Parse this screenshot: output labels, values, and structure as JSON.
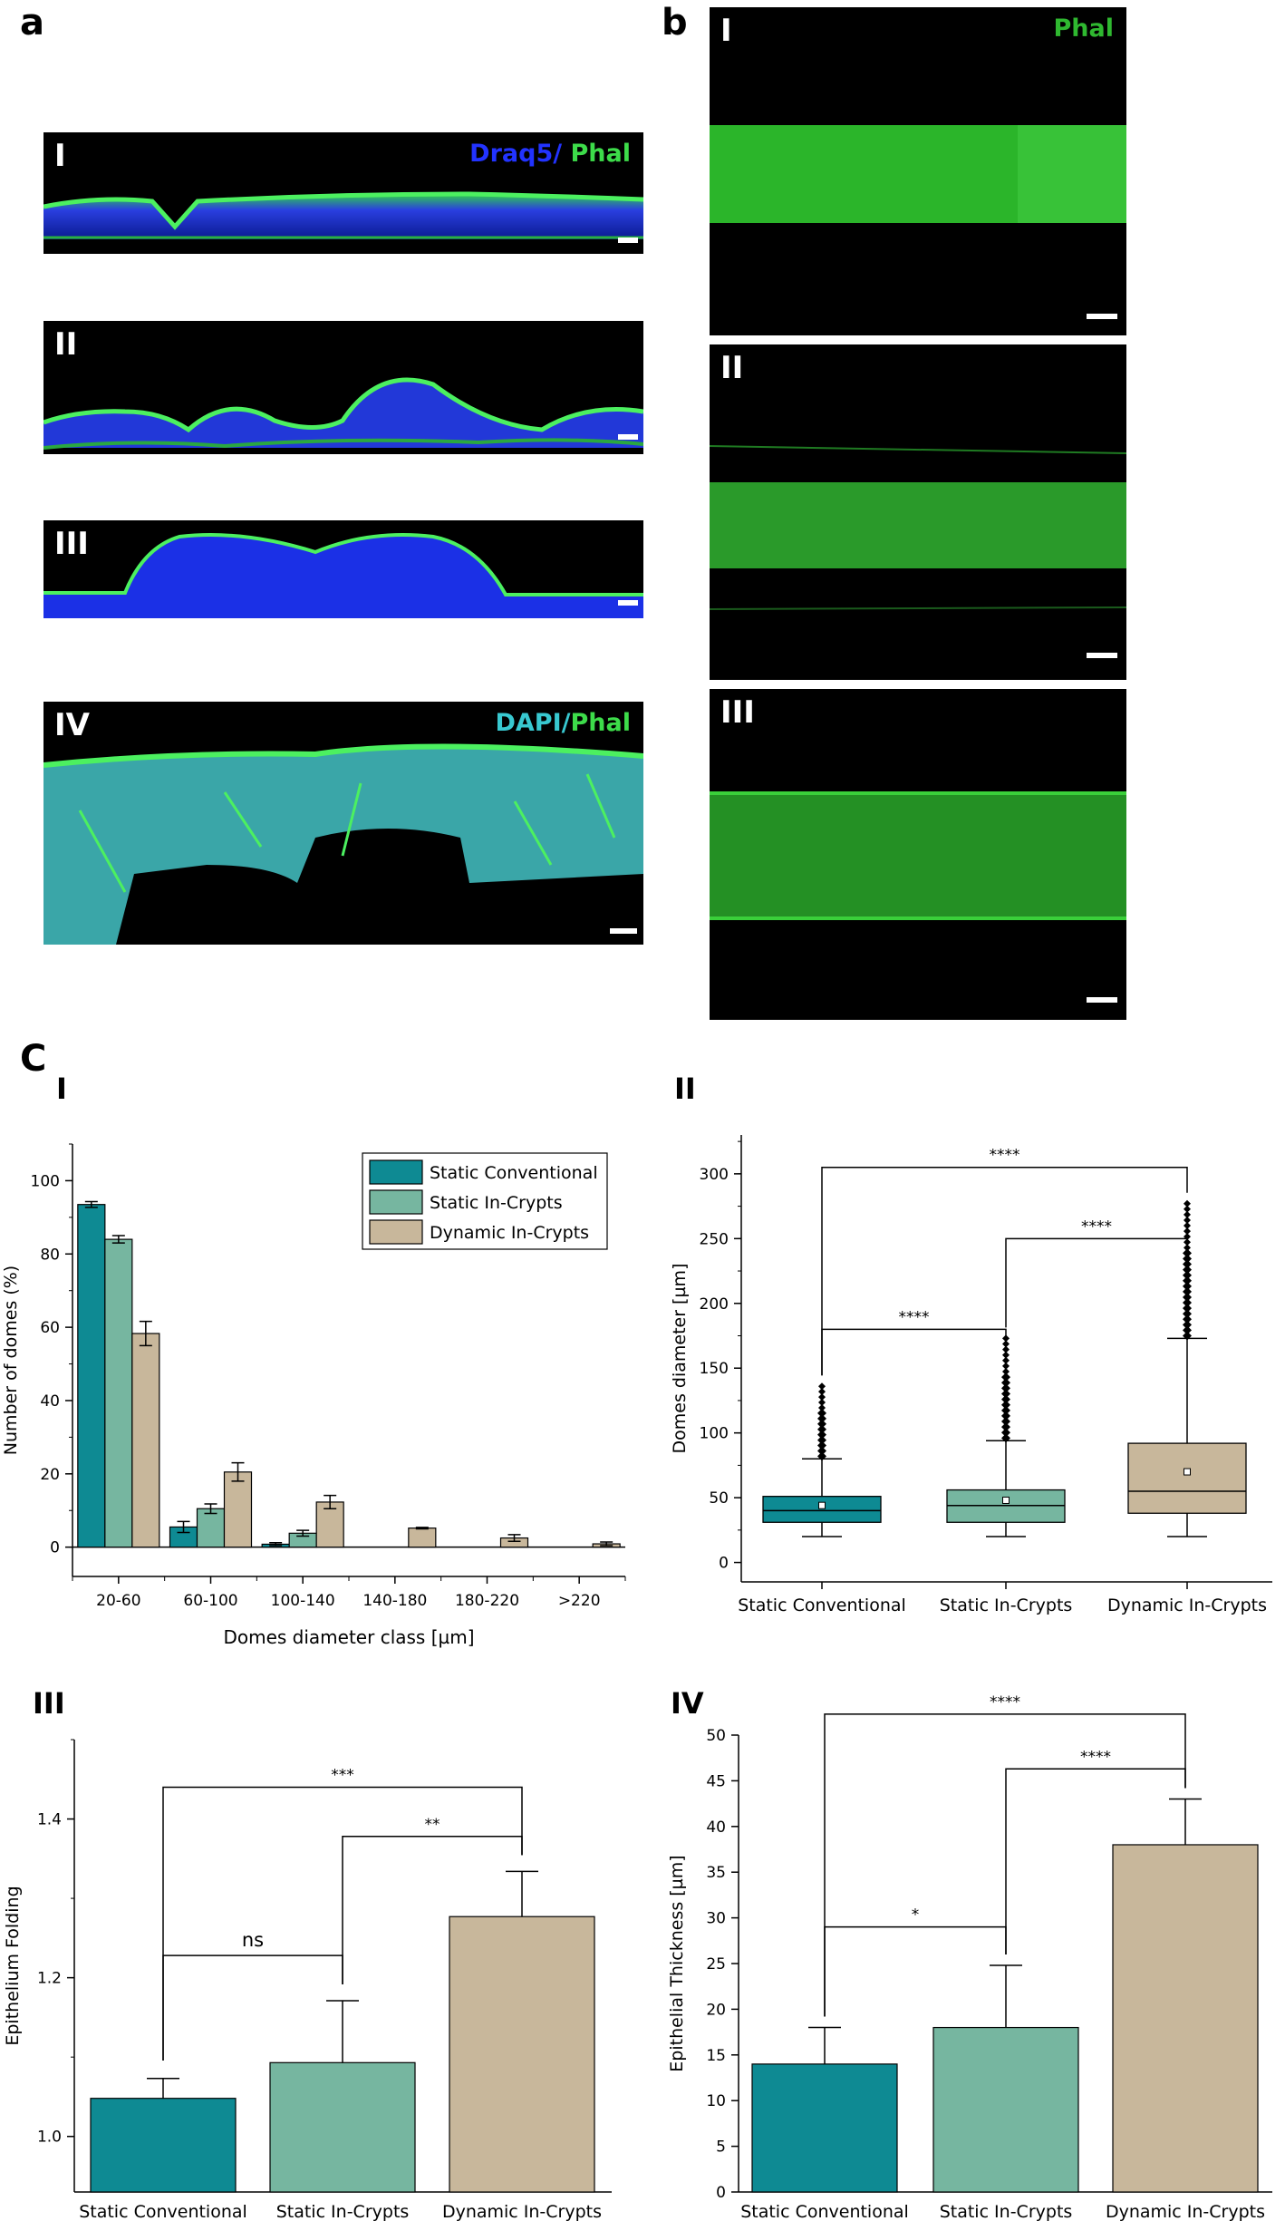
{
  "panels": {
    "a": "a",
    "b": "b",
    "c": "C"
  },
  "micrographs_a": [
    {
      "label": "I",
      "stain_a": "Draq5/",
      "stain_b": " Phal",
      "color_a": "#2233ff",
      "color_b": "#3ddc4a"
    },
    {
      "label": "II"
    },
    {
      "label": "III"
    },
    {
      "label": "IV",
      "stain_a": "DAPI/",
      "stain_b": "Phal",
      "color_a": "#38c8d0",
      "color_b": "#3ddc4a"
    }
  ],
  "micrographs_b": [
    {
      "label": "I",
      "stain": "Phal",
      "color": "#2fb830"
    },
    {
      "label": "II"
    },
    {
      "label": "III"
    }
  ],
  "colors": {
    "static_conventional": "#0e8a93",
    "static_in_crypts": "#76b6a0",
    "dynamic_in_crypts": "#c8b79b"
  },
  "chart_data": [
    {
      "id": "C-I",
      "panel_label": "I",
      "type": "bar",
      "categories": [
        "20-60",
        "60-100",
        "100-140",
        "140-180",
        "180-220",
        ">220"
      ],
      "series": [
        {
          "name": "Static Conventional",
          "values": [
            93.5,
            5.5,
            0.8,
            null,
            null,
            null
          ],
          "errors": [
            0.8,
            1.5,
            0.4,
            null,
            null,
            null
          ]
        },
        {
          "name": "Static In-Crypts",
          "values": [
            84,
            10.5,
            3.8,
            null,
            null,
            null
          ],
          "errors": [
            1,
            1.3,
            0.8,
            null,
            null,
            null
          ]
        },
        {
          "name": "Dynamic In-Crypts",
          "values": [
            58.3,
            20.5,
            12.3,
            5.2,
            2.5,
            0.9
          ],
          "errors": [
            3.3,
            2.5,
            1.8,
            0.2,
            0.9,
            0.5
          ]
        }
      ],
      "xlabel": "Domes diameter class [µm]",
      "ylabel": "Number of domes (%)",
      "ylim": [
        -8,
        110
      ],
      "yticks": [
        0,
        20,
        40,
        60,
        80,
        100
      ],
      "legend_position": "top-right"
    },
    {
      "id": "C-II",
      "panel_label": "II",
      "type": "box",
      "categories": [
        "Static Conventional",
        "Static In-Crypts",
        "Dynamic In-Crypts"
      ],
      "boxes": [
        {
          "name": "Static Conventional",
          "whisker_low": 20,
          "q1": 31,
          "median": 40,
          "q3": 51,
          "whisker_high": 80,
          "mean": 44,
          "outliers_range": [
            82,
            136
          ]
        },
        {
          "name": "Static In-Crypts",
          "whisker_low": 20,
          "q1": 31,
          "median": 44,
          "q3": 56,
          "whisker_high": 94,
          "mean": 48,
          "outliers_range": [
            96,
            173
          ]
        },
        {
          "name": "Dynamic In-Crypts",
          "whisker_low": 20,
          "q1": 38,
          "median": 55,
          "q3": 92,
          "whisker_high": 173,
          "mean": 70,
          "outliers_range": [
            175,
            277
          ]
        }
      ],
      "ylabel": "Domes diameter [µm]",
      "ylim": [
        -15,
        330
      ],
      "yticks": [
        0,
        50,
        100,
        150,
        200,
        250,
        300
      ],
      "significance": [
        {
          "from": 0,
          "to": 1,
          "label": "****"
        },
        {
          "from": 1,
          "to": 2,
          "label": "****"
        },
        {
          "from": 0,
          "to": 2,
          "label": "****"
        }
      ]
    },
    {
      "id": "C-III",
      "panel_label": "III",
      "type": "bar",
      "categories": [
        "Static Conventional",
        "Static In-Crypts",
        "Dynamic In-Crypts"
      ],
      "values": [
        1.048,
        1.093,
        1.277
      ],
      "errors": [
        0.025,
        0.078,
        0.057
      ],
      "ylabel": "Epithelium Folding",
      "ylim": [
        0.93,
        1.5
      ],
      "yticks": [
        1.0,
        1.2,
        1.4
      ],
      "significance": [
        {
          "from": 0,
          "to": 1,
          "label": "ns"
        },
        {
          "from": 1,
          "to": 2,
          "label": "**"
        },
        {
          "from": 0,
          "to": 2,
          "label": "***"
        }
      ]
    },
    {
      "id": "C-IV",
      "panel_label": "IV",
      "type": "bar",
      "categories": [
        "Static Conventional",
        "Static In-Crypts",
        "Dynamic In-Crypts"
      ],
      "values": [
        14,
        18,
        38
      ],
      "errors": [
        4,
        6.8,
        5
      ],
      "ylabel": "Epithelial Thickness [µm]",
      "ylim": [
        0,
        50
      ],
      "yticks": [
        0,
        5,
        10,
        15,
        20,
        25,
        30,
        35,
        40,
        45,
        50
      ],
      "significance": [
        {
          "from": 0,
          "to": 1,
          "label": "*"
        },
        {
          "from": 1,
          "to": 2,
          "label": "****"
        },
        {
          "from": 0,
          "to": 2,
          "label": "****"
        }
      ]
    }
  ]
}
